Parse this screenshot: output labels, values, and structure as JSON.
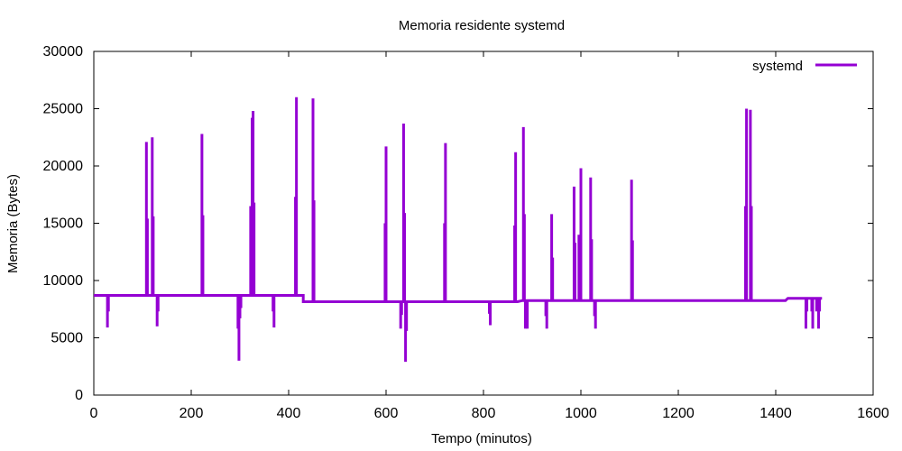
{
  "chart_data": {
    "type": "line",
    "title": "Memoria residente systemd",
    "xlabel": "Tempo (minutos)",
    "ylabel": "Memoria (Bytes)",
    "xlim": [
      0,
      1600
    ],
    "ylim": [
      0,
      30000
    ],
    "xticks": [
      0,
      200,
      400,
      600,
      800,
      1000,
      1200,
      1400,
      1600
    ],
    "yticks": [
      0,
      5000,
      10000,
      15000,
      20000,
      25000,
      30000
    ],
    "grid": false,
    "legend_position": "top-right",
    "series": [
      {
        "name": "systemd",
        "color": "#9400d3",
        "baseline": [
          [
            0,
            8700
          ],
          [
            430,
            8700
          ],
          [
            430,
            8150
          ],
          [
            870,
            8150
          ],
          [
            880,
            8250
          ],
          [
            1420,
            8250
          ],
          [
            1425,
            8450
          ],
          [
            1495,
            8450
          ]
        ],
        "spikes": [
          [
            28,
            5900
          ],
          [
            30,
            7300
          ],
          [
            108,
            22100
          ],
          [
            110,
            15400
          ],
          [
            120,
            22500
          ],
          [
            122,
            15600
          ],
          [
            130,
            6000
          ],
          [
            132,
            7300
          ],
          [
            222,
            22800
          ],
          [
            224,
            15700
          ],
          [
            296,
            5800
          ],
          [
            298,
            3000
          ],
          [
            300,
            6700
          ],
          [
            302,
            7600
          ],
          [
            322,
            16500
          ],
          [
            325,
            24200
          ],
          [
            327,
            24800
          ],
          [
            329,
            16800
          ],
          [
            368,
            7300
          ],
          [
            370,
            5900
          ],
          [
            414,
            17300
          ],
          [
            416,
            26000
          ],
          [
            450,
            25900
          ],
          [
            452,
            17000
          ],
          [
            598,
            15000
          ],
          [
            600,
            21700
          ],
          [
            630,
            5800
          ],
          [
            632,
            7000
          ],
          [
            636,
            23700
          ],
          [
            638,
            15900
          ],
          [
            640,
            2900
          ],
          [
            642,
            5600
          ],
          [
            720,
            15000
          ],
          [
            722,
            22000
          ],
          [
            812,
            7100
          ],
          [
            814,
            6100
          ],
          [
            864,
            14800
          ],
          [
            866,
            21200
          ],
          [
            882,
            23400
          ],
          [
            884,
            15800
          ],
          [
            886,
            5800
          ],
          [
            890,
            5800
          ],
          [
            928,
            6900
          ],
          [
            930,
            5800
          ],
          [
            940,
            15800
          ],
          [
            942,
            12000
          ],
          [
            986,
            18200
          ],
          [
            988,
            13300
          ],
          [
            996,
            14000
          ],
          [
            1000,
            19800
          ],
          [
            1020,
            19000
          ],
          [
            1022,
            13600
          ],
          [
            1028,
            6900
          ],
          [
            1030,
            5800
          ],
          [
            1104,
            18800
          ],
          [
            1106,
            13500
          ],
          [
            1338,
            16500
          ],
          [
            1340,
            25000
          ],
          [
            1348,
            24900
          ],
          [
            1350,
            16500
          ],
          [
            1462,
            5800
          ],
          [
            1464,
            7300
          ],
          [
            1474,
            7300
          ],
          [
            1476,
            5800
          ],
          [
            1482,
            8400
          ],
          [
            1484,
            7300
          ],
          [
            1488,
            5800
          ],
          [
            1490,
            7300
          ]
        ]
      }
    ]
  }
}
